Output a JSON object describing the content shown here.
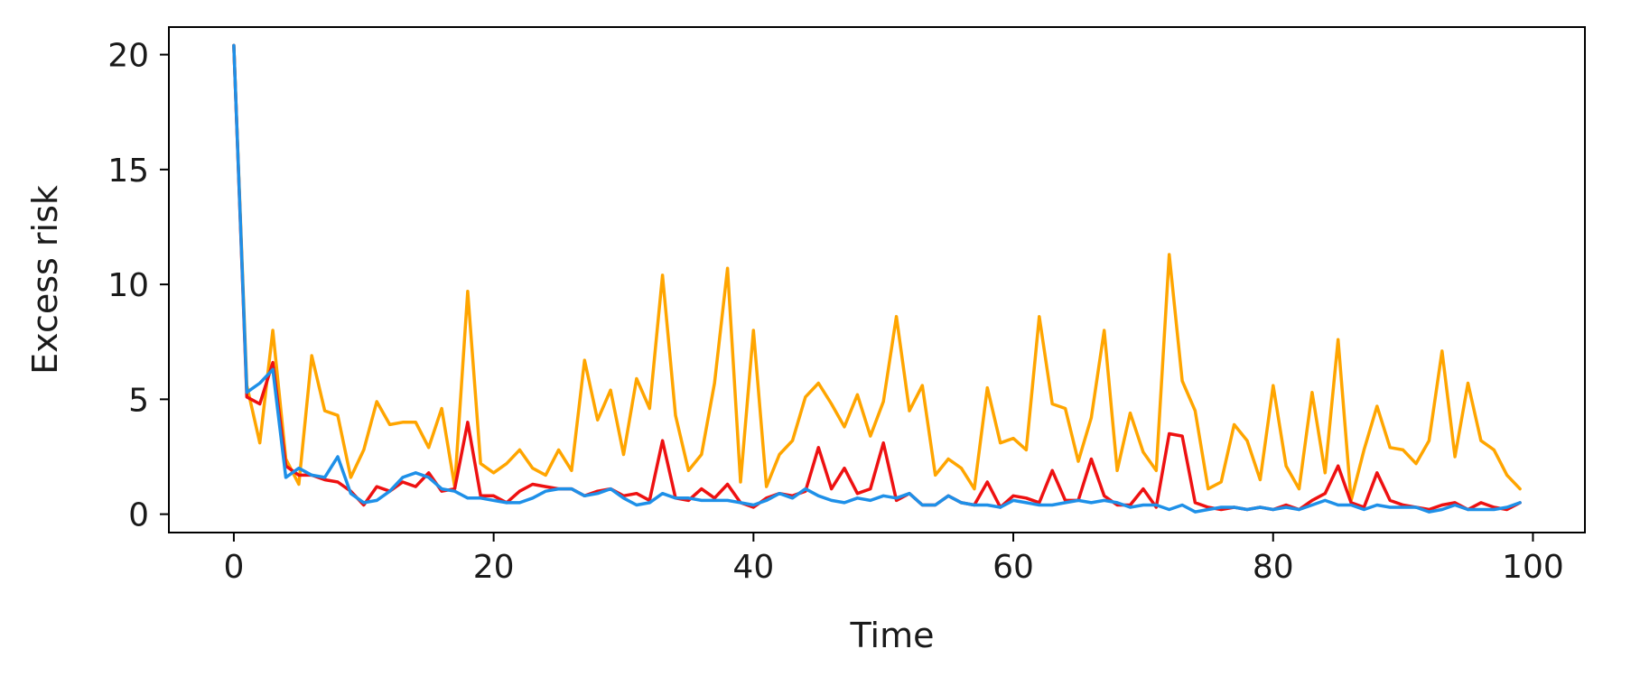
{
  "chart_data": {
    "type": "line",
    "title": "",
    "xlabel": "Time",
    "ylabel": "Excess risk",
    "xlim": [
      -5,
      104
    ],
    "ylim": [
      -0.8,
      21.2
    ],
    "xticks": [
      0,
      20,
      40,
      60,
      80,
      100
    ],
    "yticks": [
      0,
      5,
      10,
      15,
      20
    ],
    "grid": false,
    "legend": "none",
    "x": [
      0,
      1,
      2,
      3,
      4,
      5,
      6,
      7,
      8,
      9,
      10,
      11,
      12,
      13,
      14,
      15,
      16,
      17,
      18,
      19,
      20,
      21,
      22,
      23,
      24,
      25,
      26,
      27,
      28,
      29,
      30,
      31,
      32,
      33,
      34,
      35,
      36,
      37,
      38,
      39,
      40,
      41,
      42,
      43,
      44,
      45,
      46,
      47,
      48,
      49,
      50,
      51,
      52,
      53,
      54,
      55,
      56,
      57,
      58,
      59,
      60,
      61,
      62,
      63,
      64,
      65,
      66,
      67,
      68,
      69,
      70,
      71,
      72,
      73,
      74,
      75,
      76,
      77,
      78,
      79,
      80,
      81,
      82,
      83,
      84,
      85,
      86,
      87,
      88,
      89,
      90,
      91,
      92,
      93,
      94,
      95,
      96,
      97,
      98,
      99
    ],
    "series": [
      {
        "color": "#FFA500",
        "values": [
          20.4,
          5.6,
          3.1,
          8.0,
          2.4,
          1.3,
          6.9,
          4.5,
          4.3,
          1.6,
          2.8,
          4.9,
          3.9,
          4.0,
          4.0,
          2.9,
          4.6,
          1.2,
          9.7,
          2.2,
          1.8,
          2.2,
          2.8,
          2.0,
          1.7,
          2.8,
          1.9,
          6.7,
          4.1,
          5.4,
          2.6,
          5.9,
          4.6,
          10.4,
          4.3,
          1.9,
          2.6,
          5.7,
          10.7,
          1.4,
          8.0,
          1.2,
          2.6,
          3.2,
          5.1,
          5.7,
          4.8,
          3.8,
          5.2,
          3.4,
          4.9,
          8.6,
          4.5,
          5.6,
          1.7,
          2.4,
          2.0,
          1.1,
          5.5,
          3.1,
          3.3,
          2.8,
          8.6,
          4.8,
          4.6,
          2.3,
          4.2,
          8.0,
          1.9,
          4.4,
          2.7,
          1.9,
          11.3,
          5.8,
          4.5,
          1.1,
          1.4,
          3.9,
          3.2,
          1.5,
          5.6,
          2.1,
          1.1,
          5.3,
          1.8,
          7.6,
          0.6,
          2.8,
          4.7,
          2.9,
          2.8,
          2.2,
          3.2,
          7.1,
          2.5,
          5.7,
          3.2,
          2.8,
          1.7,
          1.1
        ]
      },
      {
        "color": "#EE1111",
        "values": [
          20.4,
          5.1,
          4.8,
          6.6,
          2.1,
          1.7,
          1.7,
          1.5,
          1.4,
          1.0,
          0.4,
          1.2,
          1.0,
          1.4,
          1.2,
          1.8,
          1.0,
          1.1,
          4.0,
          0.8,
          0.8,
          0.5,
          1.0,
          1.3,
          1.2,
          1.1,
          1.1,
          0.8,
          1.0,
          1.1,
          0.8,
          0.9,
          0.6,
          3.2,
          0.7,
          0.6,
          1.1,
          0.7,
          1.3,
          0.5,
          0.3,
          0.7,
          0.9,
          0.8,
          1.0,
          2.9,
          1.1,
          2.0,
          0.9,
          1.1,
          3.1,
          0.6,
          0.9,
          0.4,
          0.4,
          0.8,
          0.5,
          0.4,
          1.4,
          0.3,
          0.8,
          0.7,
          0.5,
          1.9,
          0.6,
          0.6,
          2.4,
          0.8,
          0.4,
          0.4,
          1.1,
          0.3,
          3.5,
          3.4,
          0.5,
          0.3,
          0.2,
          0.3,
          0.2,
          0.3,
          0.2,
          0.4,
          0.2,
          0.6,
          0.9,
          2.1,
          0.5,
          0.3,
          1.8,
          0.6,
          0.4,
          0.3,
          0.2,
          0.4,
          0.5,
          0.2,
          0.5,
          0.3,
          0.2,
          0.5
        ]
      },
      {
        "color": "#1E90E8",
        "values": [
          20.4,
          5.3,
          5.7,
          6.3,
          1.6,
          2.0,
          1.7,
          1.6,
          2.5,
          0.9,
          0.5,
          0.6,
          1.0,
          1.6,
          1.8,
          1.6,
          1.1,
          1.0,
          0.7,
          0.7,
          0.6,
          0.5,
          0.5,
          0.7,
          1.0,
          1.1,
          1.1,
          0.8,
          0.9,
          1.1,
          0.7,
          0.4,
          0.5,
          0.9,
          0.7,
          0.7,
          0.6,
          0.6,
          0.6,
          0.5,
          0.4,
          0.6,
          0.9,
          0.7,
          1.1,
          0.8,
          0.6,
          0.5,
          0.7,
          0.6,
          0.8,
          0.7,
          0.9,
          0.4,
          0.4,
          0.8,
          0.5,
          0.4,
          0.4,
          0.3,
          0.6,
          0.5,
          0.4,
          0.4,
          0.5,
          0.6,
          0.5,
          0.6,
          0.5,
          0.3,
          0.4,
          0.4,
          0.2,
          0.4,
          0.1,
          0.2,
          0.3,
          0.3,
          0.2,
          0.3,
          0.2,
          0.3,
          0.2,
          0.4,
          0.6,
          0.4,
          0.4,
          0.2,
          0.4,
          0.3,
          0.3,
          0.3,
          0.1,
          0.2,
          0.4,
          0.2,
          0.2,
          0.2,
          0.3,
          0.5
        ]
      }
    ]
  }
}
